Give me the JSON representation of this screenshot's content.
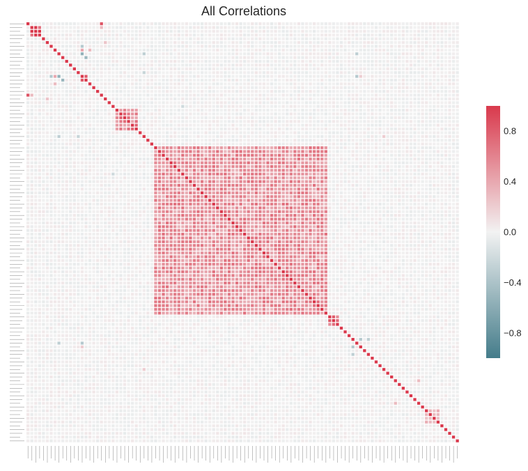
{
  "chart_data": {
    "type": "heatmap",
    "title": "All Correlations",
    "n_variables": 112,
    "value_range": [
      -1,
      1
    ],
    "colormap": {
      "negative": "#447C8A",
      "neutral": "#F2F2F2",
      "positive": "#D9394C"
    },
    "colorbar": {
      "ticks": [
        0.8,
        0.4,
        0.0,
        -0.4,
        -0.8
      ],
      "tick_labels": [
        "0.8",
        "0.4",
        "0.0",
        "−0.4",
        "−0.8"
      ]
    },
    "diagonal_value": 1.0,
    "blocks": [
      {
        "from": 1,
        "to": 3,
        "value": 0.9
      },
      {
        "from": 14,
        "to": 15,
        "value": 0.8
      },
      {
        "from": 23,
        "to": 28,
        "value": 0.55
      },
      {
        "from": 33,
        "to": 77,
        "value": 0.5
      },
      {
        "from": 78,
        "to": 80,
        "value": 0.6
      },
      {
        "from": 103,
        "to": 106,
        "value": 0.35
      }
    ],
    "pairs": [
      {
        "i": 0,
        "j": 19,
        "value": 0.85
      },
      {
        "i": 1,
        "j": 19,
        "value": 0.3
      },
      {
        "i": 8,
        "j": 14,
        "value": -0.55
      },
      {
        "i": 9,
        "j": 15,
        "value": -0.5
      },
      {
        "i": 7,
        "j": 14,
        "value": 0.4
      },
      {
        "i": 7,
        "j": 16,
        "value": 0.3
      },
      {
        "i": 6,
        "j": 14,
        "value": -0.35
      },
      {
        "i": 8,
        "j": 30,
        "value": -0.3
      },
      {
        "i": 14,
        "j": 85,
        "value": -0.35
      },
      {
        "i": 8,
        "j": 85,
        "value": -0.3
      },
      {
        "i": 13,
        "j": 30,
        "value": -0.25
      },
      {
        "i": 22,
        "j": 40,
        "value": -0.2
      },
      {
        "i": 84,
        "j": 86,
        "value": -0.35
      },
      {
        "i": 84,
        "j": 88,
        "value": -0.3
      },
      {
        "i": 5,
        "j": 20,
        "value": 0.25
      },
      {
        "i": 95,
        "j": 101,
        "value": 0.3
      },
      {
        "i": 30,
        "j": 92,
        "value": 0.2
      },
      {
        "i": 14,
        "j": 86,
        "value": 0.2
      }
    ],
    "xlabel": "",
    "ylabel": ""
  }
}
